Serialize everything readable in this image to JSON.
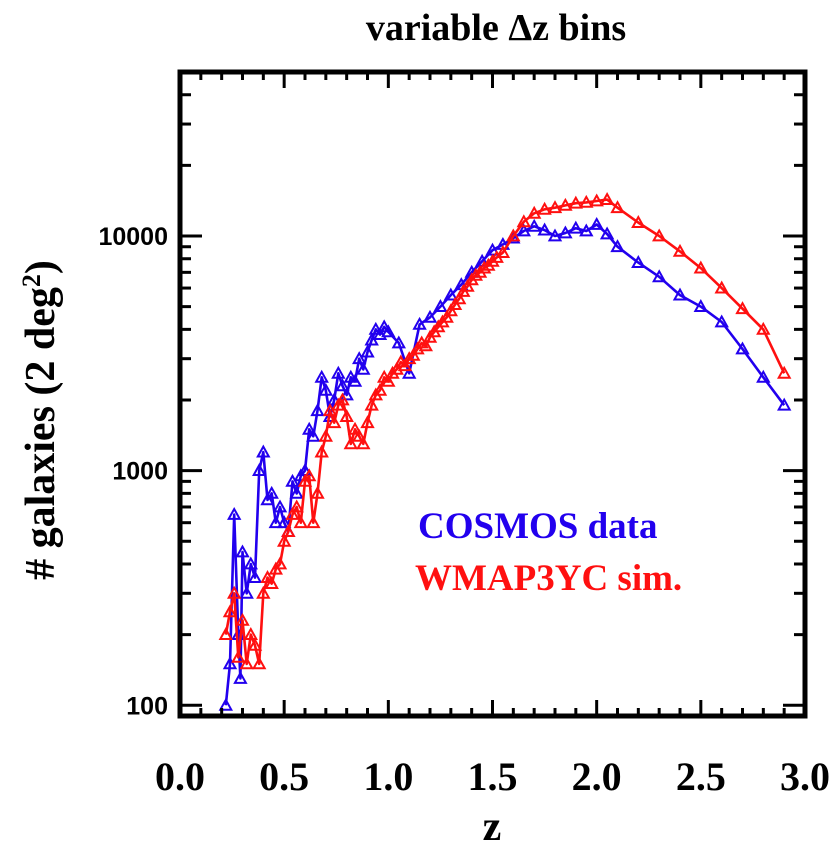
{
  "chart_data": {
    "type": "line",
    "title_prefix": "variable ",
    "title_symbol": "Δz",
    "title_suffix": " bins",
    "xlabel": "z",
    "ylabel_main": "# galaxies (2 deg",
    "ylabel_sup": "2",
    "ylabel_end": ")",
    "xlim": [
      0.0,
      3.0
    ],
    "ylim": [
      90,
      50000
    ],
    "yscale": "log",
    "x_ticks": [
      0.0,
      0.5,
      1.0,
      1.5,
      2.0,
      2.5,
      3.0
    ],
    "x_tick_labels": [
      "0.0",
      "0.5",
      "1.0",
      "1.5",
      "2.0",
      "2.5",
      "3.0"
    ],
    "y_ticks": [
      100,
      1000,
      10000
    ],
    "y_tick_labels": [
      "100",
      "1000",
      "10000"
    ],
    "legend_position": "lower-right",
    "series": [
      {
        "name": "COSMOS data",
        "color": "#2200ee",
        "x": [
          0.22,
          0.24,
          0.26,
          0.28,
          0.29,
          0.3,
          0.32,
          0.34,
          0.36,
          0.38,
          0.4,
          0.42,
          0.44,
          0.46,
          0.48,
          0.5,
          0.52,
          0.54,
          0.56,
          0.58,
          0.6,
          0.62,
          0.64,
          0.66,
          0.68,
          0.7,
          0.72,
          0.74,
          0.76,
          0.78,
          0.8,
          0.82,
          0.84,
          0.86,
          0.88,
          0.9,
          0.92,
          0.94,
          0.96,
          0.98,
          1.0,
          1.05,
          1.1,
          1.15,
          1.2,
          1.25,
          1.3,
          1.35,
          1.4,
          1.45,
          1.5,
          1.55,
          1.6,
          1.65,
          1.7,
          1.75,
          1.8,
          1.85,
          1.9,
          1.95,
          2.0,
          2.05,
          2.1,
          2.2,
          2.3,
          2.4,
          2.5,
          2.6,
          2.7,
          2.8,
          2.9
        ],
        "y": [
          100,
          150,
          650,
          200,
          130,
          450,
          300,
          400,
          350,
          1000,
          1200,
          750,
          800,
          600,
          700,
          600,
          550,
          900,
          800,
          950,
          1000,
          1500,
          1400,
          1800,
          2500,
          2200,
          1700,
          2000,
          2600,
          2300,
          2100,
          2500,
          2400,
          3000,
          2700,
          3200,
          3600,
          4000,
          3800,
          4100,
          3900,
          3500,
          2600,
          4200,
          4500,
          5000,
          5600,
          6200,
          7000,
          7800,
          8700,
          9200,
          9800,
          10500,
          11000,
          10600,
          10000,
          10300,
          10800,
          10500,
          11200,
          10200,
          9000,
          7700,
          6700,
          5600,
          5000,
          4300,
          3300,
          2500,
          1900
        ]
      },
      {
        "name": "WMAP3YC sim.",
        "color": "#ff1010",
        "x": [
          0.22,
          0.24,
          0.26,
          0.28,
          0.3,
          0.32,
          0.34,
          0.36,
          0.38,
          0.4,
          0.42,
          0.44,
          0.46,
          0.48,
          0.5,
          0.52,
          0.54,
          0.56,
          0.58,
          0.6,
          0.62,
          0.64,
          0.66,
          0.68,
          0.7,
          0.72,
          0.74,
          0.76,
          0.78,
          0.8,
          0.82,
          0.84,
          0.86,
          0.88,
          0.9,
          0.92,
          0.94,
          0.96,
          0.98,
          1.0,
          1.02,
          1.04,
          1.06,
          1.08,
          1.1,
          1.12,
          1.14,
          1.16,
          1.18,
          1.2,
          1.22,
          1.24,
          1.26,
          1.28,
          1.3,
          1.32,
          1.34,
          1.36,
          1.38,
          1.4,
          1.42,
          1.44,
          1.46,
          1.48,
          1.5,
          1.52,
          1.55,
          1.6,
          1.65,
          1.7,
          1.75,
          1.8,
          1.85,
          1.9,
          1.95,
          2.0,
          2.05,
          2.1,
          2.2,
          2.3,
          2.4,
          2.5,
          2.6,
          2.7,
          2.8,
          2.9
        ],
        "y": [
          200,
          250,
          300,
          160,
          230,
          150,
          200,
          180,
          150,
          300,
          350,
          330,
          380,
          400,
          500,
          550,
          650,
          700,
          600,
          900,
          950,
          600,
          800,
          1200,
          1400,
          1800,
          1600,
          1900,
          2000,
          1700,
          1300,
          1500,
          1400,
          1300,
          1600,
          1900,
          2100,
          2200,
          2500,
          2400,
          2600,
          2700,
          2900,
          2800,
          3000,
          3100,
          3300,
          3500,
          3400,
          3700,
          3900,
          4100,
          4300,
          4500,
          4800,
          5100,
          5400,
          5800,
          6100,
          6500,
          6800,
          7000,
          7300,
          7500,
          7800,
          8100,
          8500,
          10000,
          11500,
          12500,
          13000,
          13200,
          13500,
          13800,
          13900,
          14100,
          14300,
          13200,
          11400,
          10000,
          8600,
          7300,
          6000,
          4900,
          4000,
          2600
        ]
      }
    ]
  }
}
